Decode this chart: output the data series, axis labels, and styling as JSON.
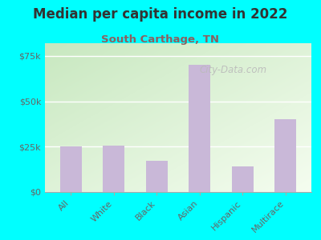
{
  "title": "Median per capita income in 2022",
  "subtitle": "South Carthage, TN",
  "categories": [
    "All",
    "White",
    "Black",
    "Asian",
    "Hispanic",
    "Multirace"
  ],
  "values": [
    25000,
    25500,
    17000,
    70000,
    14000,
    40000
  ],
  "bar_color": "#c9b8d8",
  "background_outer": "#00FFFF",
  "background_inner_top_left": "#c8e8c0",
  "background_inner_bottom_right": "#f5fdf0",
  "title_color": "#333333",
  "subtitle_color": "#8B6060",
  "tick_color": "#666666",
  "watermark": "City-Data.com",
  "ylim": [
    0,
    82000
  ],
  "yticks": [
    0,
    25000,
    50000,
    75000
  ],
  "ytick_labels": [
    "$0",
    "$25k",
    "$50k",
    "$75k"
  ]
}
